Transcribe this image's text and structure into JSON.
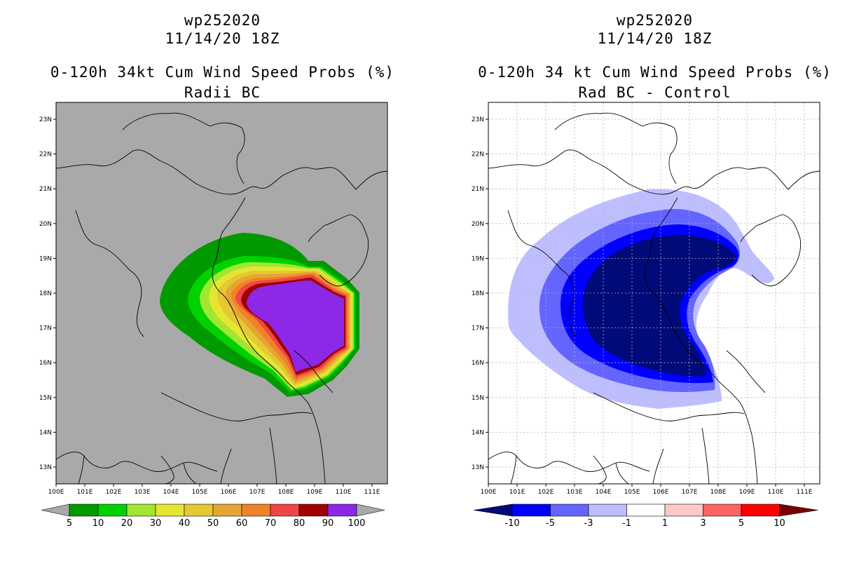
{
  "left_panel": {
    "storm_id": "wp252020",
    "datetime": "11/14/20 18Z",
    "title": "0-120h 34kt Cum Wind Speed Probs (%)",
    "subtitle": "Radii BC",
    "colorbar": {
      "labels": [
        "5",
        "10",
        "20",
        "30",
        "40",
        "50",
        "60",
        "70",
        "80",
        "90",
        "100"
      ],
      "colors": [
        "#009a00",
        "#00d200",
        "#a0e632",
        "#e6e632",
        "#e6c832",
        "#e6a532",
        "#f08228",
        "#f04646",
        "#a00000",
        "#8c28e6"
      ],
      "background": "#a9a9a9"
    }
  },
  "right_panel": {
    "storm_id": "wp252020",
    "datetime": "11/14/20 18Z",
    "title": "0-120h 34 kt Cum Wind Speed Probs (%)",
    "subtitle": "Rad BC - Control",
    "colorbar": {
      "labels": [
        "-10",
        "-5",
        "-3",
        "-1",
        "1",
        "3",
        "5",
        "10"
      ],
      "colors": [
        "#000a78",
        "#0000ff",
        "#6464ff",
        "#bebeff",
        "#ffffff",
        "#ffc8c8",
        "#ff6464",
        "#ff0000",
        "#780000"
      ]
    }
  },
  "axes": {
    "lon_labels": [
      "100E",
      "101E",
      "102E",
      "103E",
      "104E",
      "105E",
      "106E",
      "107E",
      "108E",
      "109E",
      "110E",
      "111E"
    ],
    "lat_labels": [
      "13N",
      "14N",
      "15N",
      "16N",
      "17N",
      "18N",
      "19N",
      "20N",
      "21N",
      "22N",
      "23N"
    ]
  }
}
